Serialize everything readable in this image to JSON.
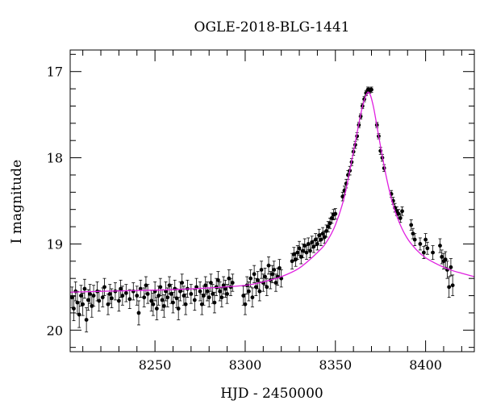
{
  "chart_data": {
    "type": "scatter",
    "title": "OGLE-2018-BLG-1441",
    "xlabel": "HJD - 2450000",
    "ylabel": "I magnitude",
    "xlim": [
      8203,
      8427
    ],
    "ylim": [
      20.25,
      16.75
    ],
    "y_inverted": true,
    "x_ticks": [
      8250,
      8300,
      8350,
      8400
    ],
    "x_tick_labels": [
      "8250",
      "8300",
      "8350",
      "8400"
    ],
    "y_ticks": [
      17,
      18,
      19,
      20
    ],
    "y_tick_labels": [
      "17",
      "18",
      "19",
      "20"
    ],
    "grid": false,
    "colors": {
      "points": "#000000",
      "model": "#e020e0"
    },
    "model": {
      "name": "",
      "t0": 8368.5,
      "peak_mag": 17.24,
      "baseline_mag": 19.56,
      "x": [
        8203,
        8220,
        8240,
        8260,
        8280,
        8300,
        8310,
        8320,
        8330,
        8340,
        8345,
        8350,
        8355,
        8360,
        8364,
        8366,
        8368.5,
        8371,
        8374,
        8378,
        8382,
        8386,
        8390,
        8395,
        8400,
        8405,
        8410,
        8415,
        8420,
        8427
      ],
      "y": [
        19.56,
        19.55,
        19.54,
        19.53,
        19.51,
        19.48,
        19.44,
        19.38,
        19.28,
        19.1,
        18.98,
        18.78,
        18.45,
        17.93,
        17.5,
        17.33,
        17.24,
        17.4,
        17.75,
        18.2,
        18.55,
        18.78,
        18.94,
        19.07,
        19.16,
        19.22,
        19.27,
        19.31,
        19.34,
        19.38
      ]
    },
    "series": [
      {
        "name": "",
        "points": [
          [
            8204,
            19.62,
            0.12
          ],
          [
            8205,
            19.75,
            0.14
          ],
          [
            8206,
            19.55,
            0.11
          ],
          [
            8207,
            19.68,
            0.13
          ],
          [
            8208,
            19.82,
            0.15
          ],
          [
            8209,
            19.6,
            0.12
          ],
          [
            8210,
            19.7,
            0.13
          ],
          [
            8211,
            19.52,
            0.11
          ],
          [
            8212,
            19.88,
            0.14
          ],
          [
            8213,
            19.65,
            0.12
          ],
          [
            8214,
            19.58,
            0.11
          ],
          [
            8215,
            19.72,
            0.13
          ],
          [
            8216,
            19.6,
            0.12
          ],
          [
            8218,
            19.55,
            0.11
          ],
          [
            8219,
            19.66,
            0.12
          ],
          [
            8221,
            19.62,
            0.11
          ],
          [
            8222,
            19.5,
            0.1
          ],
          [
            8224,
            19.7,
            0.12
          ],
          [
            8225,
            19.58,
            0.11
          ],
          [
            8226,
            19.63,
            0.11
          ],
          [
            8228,
            19.55,
            0.1
          ],
          [
            8230,
            19.66,
            0.12
          ],
          [
            8231,
            19.52,
            0.1
          ],
          [
            8232,
            19.6,
            0.11
          ],
          [
            8234,
            19.57,
            0.1
          ],
          [
            8236,
            19.64,
            0.11
          ],
          [
            8238,
            19.55,
            0.1
          ],
          [
            8240,
            19.6,
            0.11
          ],
          [
            8241,
            19.8,
            0.14
          ],
          [
            8242,
            19.52,
            0.1
          ],
          [
            8244,
            19.62,
            0.11
          ],
          [
            8245,
            19.48,
            0.1
          ],
          [
            8246,
            19.58,
            0.11
          ],
          [
            8248,
            19.66,
            0.12
          ],
          [
            8249,
            19.7,
            0.13
          ],
          [
            8250,
            19.55,
            0.11
          ],
          [
            8251,
            19.75,
            0.13
          ],
          [
            8252,
            19.6,
            0.11
          ],
          [
            8253,
            19.5,
            0.1
          ],
          [
            8254,
            19.65,
            0.12
          ],
          [
            8255,
            19.72,
            0.13
          ],
          [
            8256,
            19.55,
            0.11
          ],
          [
            8257,
            19.62,
            0.11
          ],
          [
            8258,
            19.48,
            0.1
          ],
          [
            8259,
            19.58,
            0.11
          ],
          [
            8260,
            19.68,
            0.12
          ],
          [
            8261,
            19.52,
            0.1
          ],
          [
            8262,
            19.63,
            0.11
          ],
          [
            8263,
            19.75,
            0.13
          ],
          [
            8264,
            19.55,
            0.11
          ],
          [
            8265,
            19.45,
            0.1
          ],
          [
            8266,
            19.6,
            0.11
          ],
          [
            8267,
            19.7,
            0.12
          ],
          [
            8268,
            19.52,
            0.1
          ],
          [
            8270,
            19.58,
            0.11
          ],
          [
            8272,
            19.65,
            0.12
          ],
          [
            8273,
            19.5,
            0.1
          ],
          [
            8275,
            19.55,
            0.11
          ],
          [
            8276,
            19.7,
            0.12
          ],
          [
            8277,
            19.6,
            0.11
          ],
          [
            8278,
            19.48,
            0.1
          ],
          [
            8279,
            19.55,
            0.11
          ],
          [
            8280,
            19.62,
            0.11
          ],
          [
            8281,
            19.45,
            0.1
          ],
          [
            8282,
            19.58,
            0.11
          ],
          [
            8283,
            19.68,
            0.12
          ],
          [
            8284,
            19.5,
            0.1
          ],
          [
            8285,
            19.42,
            0.1
          ],
          [
            8286,
            19.55,
            0.11
          ],
          [
            8287,
            19.62,
            0.11
          ],
          [
            8288,
            19.48,
            0.1
          ],
          [
            8289,
            19.52,
            0.1
          ],
          [
            8290,
            19.58,
            0.11
          ],
          [
            8291,
            19.4,
            0.1
          ],
          [
            8292,
            19.5,
            0.1
          ],
          [
            8293,
            19.45,
            0.1
          ],
          [
            8299,
            19.6,
            0.11
          ],
          [
            8300,
            19.7,
            0.12
          ],
          [
            8301,
            19.48,
            0.1
          ],
          [
            8302,
            19.55,
            0.11
          ],
          [
            8303,
            19.4,
            0.1
          ],
          [
            8304,
            19.62,
            0.11
          ],
          [
            8305,
            19.35,
            0.1
          ],
          [
            8306,
            19.5,
            0.1
          ],
          [
            8307,
            19.42,
            0.1
          ],
          [
            8308,
            19.55,
            0.11
          ],
          [
            8309,
            19.3,
            0.1
          ],
          [
            8310,
            19.45,
            0.1
          ],
          [
            8311,
            19.38,
            0.1
          ],
          [
            8312,
            19.5,
            0.1
          ],
          [
            8313,
            19.25,
            0.1
          ],
          [
            8314,
            19.42,
            0.1
          ],
          [
            8315,
            19.35,
            0.1
          ],
          [
            8316,
            19.3,
            0.1
          ],
          [
            8317,
            19.45,
            0.1
          ],
          [
            8318,
            19.38,
            0.1
          ],
          [
            8319,
            19.28,
            0.1
          ],
          [
            8320,
            19.4,
            0.1
          ],
          [
            8326,
            19.2,
            0.09
          ],
          [
            8327,
            19.12,
            0.08
          ],
          [
            8328,
            19.18,
            0.08
          ],
          [
            8329,
            19.1,
            0.08
          ],
          [
            8330,
            19.05,
            0.08
          ],
          [
            8331,
            19.15,
            0.08
          ],
          [
            8332,
            19.08,
            0.08
          ],
          [
            8333,
            19.02,
            0.08
          ],
          [
            8334,
            19.1,
            0.08
          ],
          [
            8335,
            19.0,
            0.07
          ],
          [
            8336,
            19.08,
            0.08
          ],
          [
            8337,
            18.98,
            0.07
          ],
          [
            8338,
            19.03,
            0.07
          ],
          [
            8339,
            18.95,
            0.07
          ],
          [
            8340,
            19.0,
            0.07
          ],
          [
            8341,
            18.9,
            0.07
          ],
          [
            8342,
            18.95,
            0.07
          ],
          [
            8343,
            18.88,
            0.07
          ],
          [
            8344,
            18.92,
            0.07
          ],
          [
            8345,
            18.85,
            0.07
          ],
          [
            8346,
            18.8,
            0.06
          ],
          [
            8347,
            18.76,
            0.06
          ],
          [
            8348,
            18.7,
            0.06
          ],
          [
            8349,
            18.66,
            0.06
          ],
          [
            8350,
            18.65,
            0.06
          ],
          [
            8354,
            18.45,
            0.05
          ],
          [
            8355,
            18.38,
            0.05
          ],
          [
            8356,
            18.3,
            0.05
          ],
          [
            8357,
            18.2,
            0.05
          ],
          [
            8358,
            18.15,
            0.05
          ],
          [
            8359,
            18.05,
            0.04
          ],
          [
            8360,
            17.93,
            0.04
          ],
          [
            8361,
            17.85,
            0.04
          ],
          [
            8362,
            17.75,
            0.04
          ],
          [
            8363,
            17.62,
            0.03
          ],
          [
            8364,
            17.52,
            0.03
          ],
          [
            8365,
            17.4,
            0.03
          ],
          [
            8366,
            17.32,
            0.03
          ],
          [
            8367,
            17.25,
            0.03
          ],
          [
            8368,
            17.21,
            0.03
          ],
          [
            8369,
            17.22,
            0.03
          ],
          [
            8370,
            17.21,
            0.03
          ],
          [
            8373,
            17.62,
            0.03
          ],
          [
            8374,
            17.75,
            0.03
          ],
          [
            8375,
            17.92,
            0.04
          ],
          [
            8376,
            18.0,
            0.04
          ],
          [
            8377,
            18.12,
            0.04
          ],
          [
            8381,
            18.42,
            0.04
          ],
          [
            8382,
            18.5,
            0.04
          ],
          [
            8383,
            18.58,
            0.05
          ],
          [
            8384,
            18.62,
            0.05
          ],
          [
            8385,
            18.65,
            0.05
          ],
          [
            8386,
            18.7,
            0.05
          ],
          [
            8387,
            18.62,
            0.05
          ],
          [
            8392,
            18.78,
            0.06
          ],
          [
            8393,
            18.88,
            0.06
          ],
          [
            8394,
            18.95,
            0.07
          ],
          [
            8397,
            19.0,
            0.07
          ],
          [
            8399,
            19.1,
            0.07
          ],
          [
            8400,
            18.95,
            0.07
          ],
          [
            8401,
            19.05,
            0.07
          ],
          [
            8404,
            19.1,
            0.08
          ],
          [
            8408,
            19.02,
            0.08
          ],
          [
            8409,
            19.15,
            0.08
          ],
          [
            8410,
            19.2,
            0.09
          ],
          [
            8411,
            19.18,
            0.09
          ],
          [
            8412,
            19.3,
            0.1
          ],
          [
            8413,
            19.5,
            0.12
          ],
          [
            8414,
            19.27,
            0.1
          ],
          [
            8415,
            19.48,
            0.12
          ]
        ]
      }
    ]
  }
}
